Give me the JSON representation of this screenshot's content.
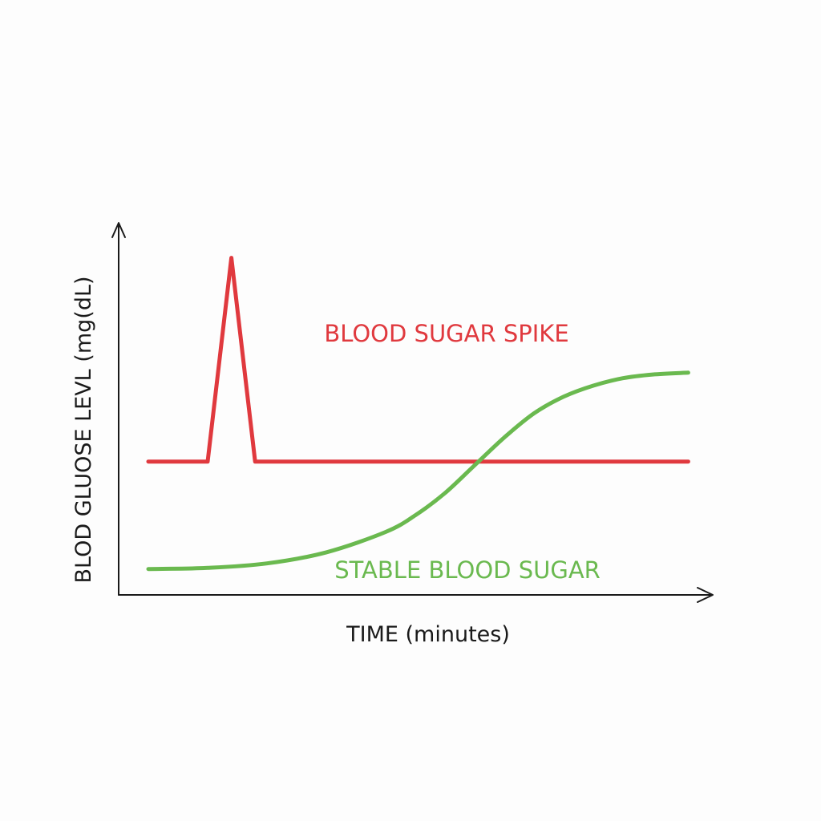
{
  "chart_data": {
    "type": "line",
    "title": "",
    "xlabel": "TIME (minutes)",
    "ylabel": "BLOD GLUOSE LEVL (mg(dL)",
    "xlim": [
      0,
      100
    ],
    "ylim": [
      0,
      100
    ],
    "grid": false,
    "legend": "none",
    "series": [
      {
        "name": "BLOOD SUGAR SPIKE",
        "color": "#e0393e",
        "x": [
          5,
          15,
          19,
          23,
          96
        ],
        "y": [
          36,
          36,
          91,
          36,
          36
        ]
      },
      {
        "name": "STABLE BLOOD SUGAR",
        "color": "#6ab94f",
        "x": [
          5,
          15,
          25,
          35,
          45,
          50,
          55,
          60,
          65,
          70,
          75,
          80,
          85,
          90,
          96
        ],
        "y": [
          7,
          7.3,
          8.5,
          11.5,
          17,
          21.5,
          27.5,
          35,
          42.5,
          49,
          53.5,
          56.5,
          58.5,
          59.5,
          60
        ]
      }
    ]
  }
}
